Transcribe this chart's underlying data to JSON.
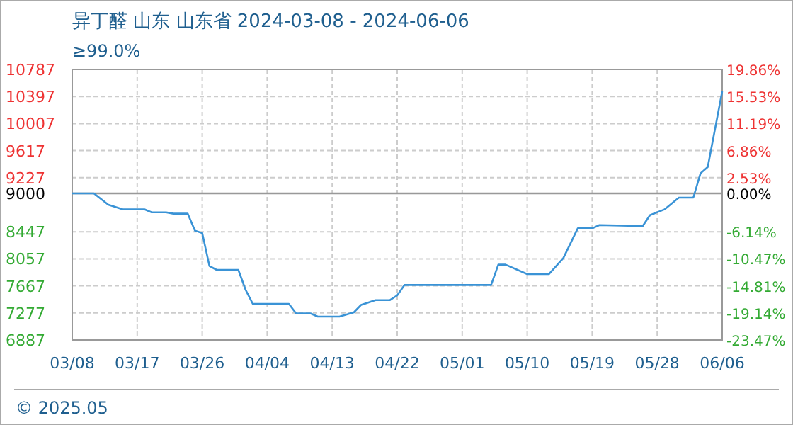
{
  "chart_data": {
    "type": "line",
    "title": "异丁醛 山东 山东省 2024-03-08 - 2024-06-06",
    "subtitle": "≥99.0%",
    "annotations": [
      "© 2025.05"
    ],
    "x": [
      "2024-03-08",
      "2024-03-11",
      "2024-03-13",
      "2024-03-15",
      "2024-03-18",
      "2024-03-19",
      "2024-03-21",
      "2024-03-22",
      "2024-03-24",
      "2024-03-25",
      "2024-03-26",
      "2024-03-27",
      "2024-03-28",
      "2024-03-31",
      "2024-04-01",
      "2024-04-02",
      "2024-04-07",
      "2024-04-08",
      "2024-04-10",
      "2024-04-11",
      "2024-04-14",
      "2024-04-16",
      "2024-04-17",
      "2024-04-19",
      "2024-04-21",
      "2024-04-22",
      "2024-04-23",
      "2024-05-05",
      "2024-05-06",
      "2024-05-07",
      "2024-05-10",
      "2024-05-13",
      "2024-05-15",
      "2024-05-17",
      "2024-05-19",
      "2024-05-20",
      "2024-05-26",
      "2024-05-27",
      "2024-05-29",
      "2024-05-31",
      "2024-06-02",
      "2024-06-03",
      "2024-06-04",
      "2024-06-06"
    ],
    "series": [
      {
        "color": "#3a93d6",
        "values": [
          9000,
          9000,
          8837,
          8770,
          8770,
          8728,
          8728,
          8708,
          8708,
          8463,
          8428,
          7953,
          7898,
          7898,
          7612,
          7408,
          7408,
          7270,
          7270,
          7224,
          7224,
          7285,
          7393,
          7462,
          7462,
          7530,
          7679,
          7679,
          7973,
          7973,
          7836,
          7836,
          8067,
          8496,
          8496,
          8544,
          8530,
          8687,
          8769,
          8939,
          8939,
          9290,
          9380,
          10470
        ]
      }
    ],
    "xlim": [
      "2024-03-08",
      "2024-06-06"
    ],
    "xticks": [
      {
        "value": "2024-03-08",
        "label": "03/08"
      },
      {
        "value": "2024-03-17",
        "label": "03/17"
      },
      {
        "value": "2024-03-26",
        "label": "03/26"
      },
      {
        "value": "2024-04-04",
        "label": "04/04"
      },
      {
        "value": "2024-04-13",
        "label": "04/13"
      },
      {
        "value": "2024-04-22",
        "label": "04/22"
      },
      {
        "value": "2024-05-01",
        "label": "05/01"
      },
      {
        "value": "2024-05-10",
        "label": "05/10"
      },
      {
        "value": "2024-05-19",
        "label": "05/19"
      },
      {
        "value": "2024-05-28",
        "label": "05/28"
      },
      {
        "value": "2024-06-06",
        "label": "06/06"
      }
    ],
    "ylim": [
      6887,
      10787
    ],
    "yticks": [
      6887,
      7277,
      7667,
      8057,
      8447,
      9000,
      9227,
      9617,
      10007,
      10397,
      10787
    ],
    "y2lim": [
      -23.47,
      19.86
    ],
    "y2ticks": [
      {
        "value": -23.47,
        "label": "-23.47%"
      },
      {
        "value": -19.14,
        "label": "-19.14%"
      },
      {
        "value": -14.81,
        "label": "-14.81%"
      },
      {
        "value": -10.47,
        "label": "-10.47%"
      },
      {
        "value": -6.14,
        "label": "-6.14%"
      },
      {
        "value": 0,
        "label": "0.00%"
      },
      {
        "value": 2.53,
        "label": "2.53%"
      },
      {
        "value": 6.86,
        "label": "6.86%"
      },
      {
        "value": 11.19,
        "label": "11.19%"
      },
      {
        "value": 15.53,
        "label": "15.53%"
      },
      {
        "value": 19.86,
        "label": "19.86%"
      }
    ],
    "ref_lines": [
      {
        "axis": "y",
        "value": 9000,
        "color": "#999999"
      }
    ],
    "grid": true,
    "marker": "none",
    "line_style": "solid"
  }
}
